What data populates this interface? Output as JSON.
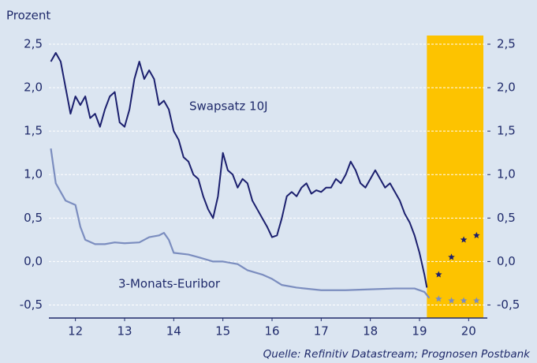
{
  "chart_data": {
    "type": "line",
    "y_label": "Prozent",
    "source": "Quelle: Refinitiv Datastream; Prognosen Postbank",
    "xlim": [
      11.46,
      20.38
    ],
    "xticks": [
      12,
      13,
      14,
      15,
      16,
      17,
      18,
      19,
      20
    ],
    "ylim": [
      -0.65,
      2.6
    ],
    "yticks": [
      {
        "value": 2.5,
        "label": "2,5"
      },
      {
        "value": 2.0,
        "label": "2,0"
      },
      {
        "value": 1.5,
        "label": "1,5"
      },
      {
        "value": 1.0,
        "label": "1,0"
      },
      {
        "value": 0.5,
        "label": "0,5"
      },
      {
        "value": 0.0,
        "label": "0,0"
      },
      {
        "value": -0.5,
        "label": "-0,5"
      }
    ],
    "y2lim": [
      -0.65,
      2.6
    ],
    "y2ticks": [
      {
        "value": 2.5,
        "label": "2,5"
      },
      {
        "value": 2.0,
        "label": "2,0"
      },
      {
        "value": 1.5,
        "label": "1,5"
      },
      {
        "value": 1.0,
        "label": "1,0"
      },
      {
        "value": 0.5,
        "label": "0,5"
      },
      {
        "value": 0.0,
        "label": "0,0"
      },
      {
        "value": -0.5,
        "label": "-0,5"
      }
    ],
    "grid": true,
    "highlight": {
      "xlim": [
        19.15,
        20.3
      ],
      "color": "#fdc300"
    },
    "series": [
      {
        "name": "Swapsatz 10J",
        "color": "#1b1f6e",
        "x": [
          11.5,
          11.6,
          11.7,
          11.8,
          11.9,
          12.0,
          12.1,
          12.2,
          12.3,
          12.4,
          12.5,
          12.6,
          12.7,
          12.8,
          12.9,
          13.0,
          13.1,
          13.2,
          13.3,
          13.4,
          13.5,
          13.6,
          13.7,
          13.8,
          13.9,
          14.0,
          14.1,
          14.2,
          14.3,
          14.4,
          14.5,
          14.6,
          14.7,
          14.8,
          14.9,
          15.0,
          15.1,
          15.2,
          15.3,
          15.4,
          15.5,
          15.6,
          15.7,
          15.8,
          15.9,
          16.0,
          16.1,
          16.2,
          16.3,
          16.4,
          16.5,
          16.6,
          16.7,
          16.8,
          16.9,
          17.0,
          17.1,
          17.2,
          17.3,
          17.4,
          17.5,
          17.6,
          17.7,
          17.8,
          17.9,
          18.0,
          18.1,
          18.2,
          18.3,
          18.4,
          18.5,
          18.6,
          18.7,
          18.8,
          18.9,
          19.0,
          19.1,
          19.15
        ],
        "values": [
          2.3,
          2.4,
          2.3,
          2.0,
          1.7,
          1.9,
          1.8,
          1.9,
          1.65,
          1.7,
          1.55,
          1.75,
          1.9,
          1.95,
          1.6,
          1.55,
          1.75,
          2.1,
          2.3,
          2.1,
          2.2,
          2.1,
          1.8,
          1.85,
          1.75,
          1.5,
          1.4,
          1.2,
          1.15,
          1.0,
          0.95,
          0.75,
          0.6,
          0.5,
          0.75,
          1.25,
          1.05,
          1.0,
          0.85,
          0.95,
          0.9,
          0.7,
          0.6,
          0.5,
          0.4,
          0.28,
          0.3,
          0.5,
          0.75,
          0.8,
          0.75,
          0.85,
          0.9,
          0.78,
          0.82,
          0.8,
          0.85,
          0.85,
          0.95,
          0.9,
          1.0,
          1.15,
          1.05,
          0.9,
          0.85,
          0.95,
          1.05,
          0.95,
          0.85,
          0.9,
          0.8,
          0.7,
          0.55,
          0.45,
          0.3,
          0.1,
          -0.15,
          -0.3
        ]
      },
      {
        "name": "3-Monats-Euribor",
        "color": "#7b8dbf",
        "x": [
          11.5,
          11.6,
          11.8,
          12.0,
          12.1,
          12.2,
          12.4,
          12.6,
          12.8,
          13.0,
          13.3,
          13.5,
          13.7,
          13.8,
          13.9,
          14.0,
          14.3,
          14.5,
          14.8,
          15.0,
          15.3,
          15.5,
          15.8,
          16.0,
          16.2,
          16.5,
          17.0,
          17.5,
          18.0,
          18.5,
          18.9,
          19.1,
          19.2
        ],
        "values": [
          1.3,
          0.9,
          0.7,
          0.65,
          0.4,
          0.25,
          0.2,
          0.2,
          0.22,
          0.21,
          0.22,
          0.28,
          0.3,
          0.33,
          0.25,
          0.1,
          0.08,
          0.05,
          0.0,
          0.0,
          -0.03,
          -0.1,
          -0.15,
          -0.2,
          -0.27,
          -0.3,
          -0.33,
          -0.33,
          -0.32,
          -0.31,
          -0.31,
          -0.35,
          -0.42
        ]
      }
    ],
    "forecasts": [
      {
        "color": "#1b1f6e",
        "x": [
          19.39,
          19.65,
          19.9,
          20.16
        ],
        "values": [
          -0.15,
          0.05,
          0.25,
          0.3
        ]
      },
      {
        "color": "#7b8dbf",
        "x": [
          19.39,
          19.65,
          19.9,
          20.16
        ],
        "values": [
          -0.43,
          -0.45,
          -0.45,
          -0.45
        ]
      }
    ]
  }
}
